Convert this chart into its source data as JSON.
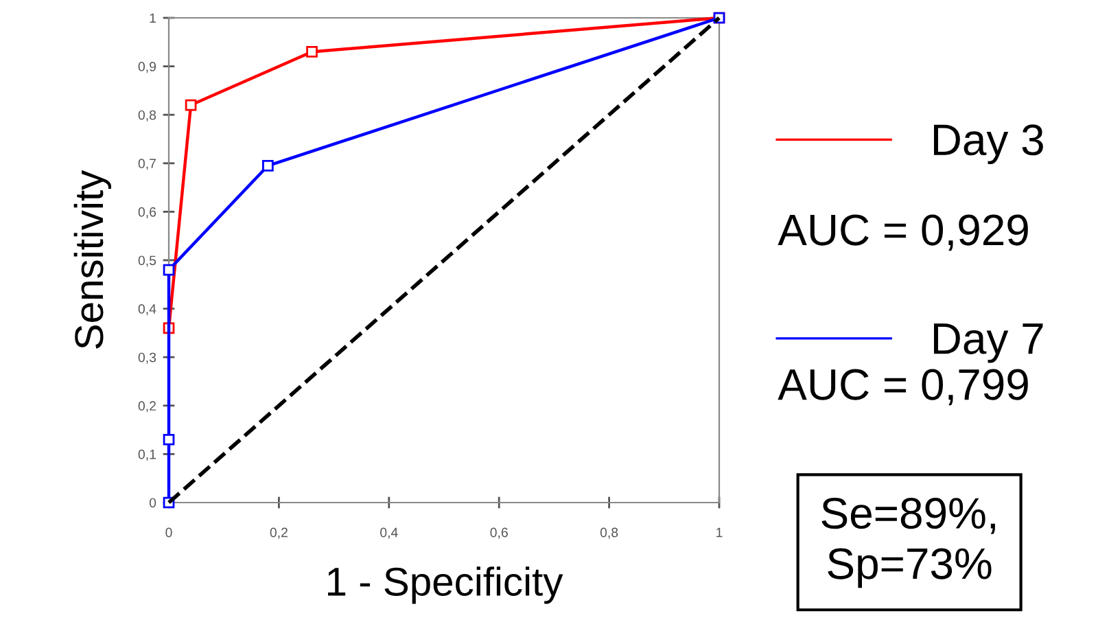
{
  "chart_data": {
    "type": "line",
    "xlabel": "1 - Specificity",
    "ylabel": "Sensitivity",
    "series": [
      {
        "name": "Day 3",
        "color": "#ff0000",
        "x": [
          0,
          0.04,
          0.26,
          1
        ],
        "values": [
          0.36,
          0.82,
          0.93,
          1
        ],
        "marker": "square"
      },
      {
        "name": "Day 7",
        "color": "#0000ff",
        "x": [
          0,
          0,
          0,
          0.18,
          1
        ],
        "values": [
          0,
          0.13,
          0.48,
          0.695,
          1
        ],
        "marker": "square"
      },
      {
        "color": "#000000",
        "x": [
          0,
          1
        ],
        "values": [
          0,
          1
        ],
        "marker": "none",
        "line_style": "dashed"
      }
    ],
    "xlim": [
      0,
      1
    ],
    "ylim": [
      0,
      1
    ],
    "xticks": [
      0,
      {
        "value": 0.2,
        "label": "0,2"
      },
      {
        "value": 0.4,
        "label": "0,4"
      },
      {
        "value": 0.6,
        "label": "0,6"
      },
      {
        "value": 0.8,
        "label": "0,8"
      },
      1
    ],
    "yticks": [
      0,
      {
        "value": 0.1,
        "label": "0,1"
      },
      {
        "value": 0.2,
        "label": "0,2"
      },
      {
        "value": 0.3,
        "label": "0,3"
      },
      {
        "value": 0.4,
        "label": "0,4"
      },
      {
        "value": 0.5,
        "label": "0,5"
      },
      {
        "value": 0.6,
        "label": "0,6"
      },
      {
        "value": 0.7,
        "label": "0,7"
      },
      {
        "value": 0.8,
        "label": "0,8"
      },
      {
        "value": 0.9,
        "label": "0,9"
      },
      1
    ],
    "legend": "right",
    "grid": false,
    "annotations": [
      "AUC = 0,929",
      "AUC = 0,799",
      "Se=89%,\nSp=73%"
    ]
  }
}
